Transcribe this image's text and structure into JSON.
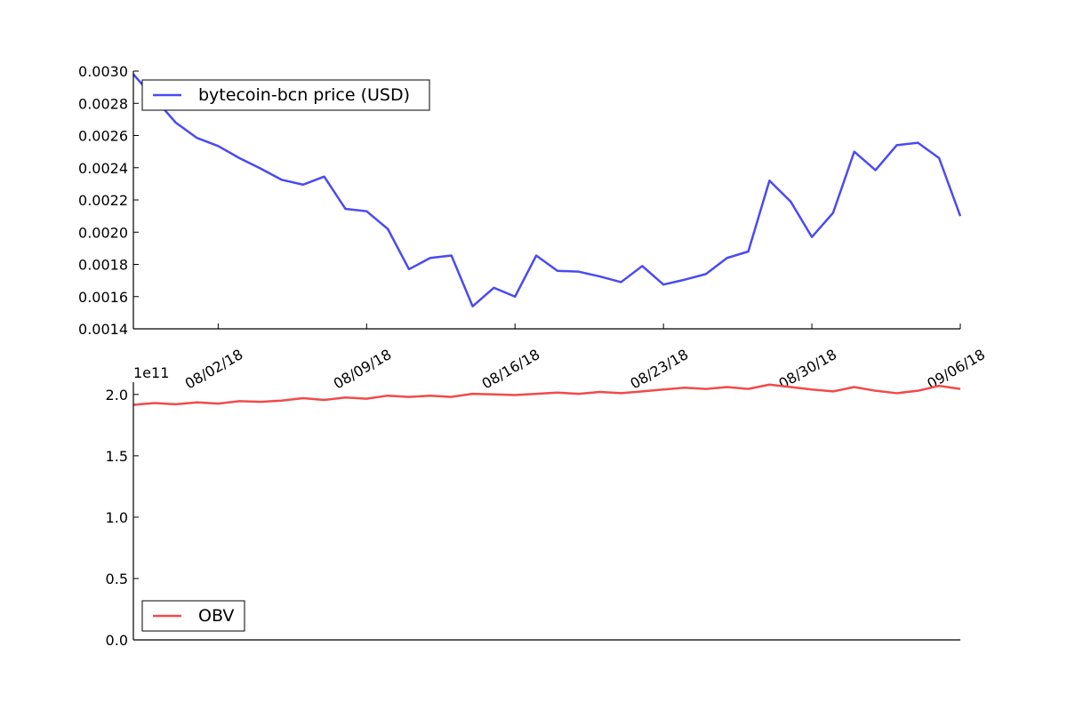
{
  "chart_data": [
    {
      "type": "line",
      "title": "",
      "xlabel": "",
      "ylabel": "",
      "x_tick_labels": [
        "08/02/18",
        "08/09/18",
        "08/16/18",
        "08/23/18",
        "08/30/18",
        "09/06/18"
      ],
      "x_tick_dates": [
        "2018-08-02",
        "2018-08-09",
        "2018-08-16",
        "2018-08-23",
        "2018-08-30",
        "2018-09-06"
      ],
      "xlim": [
        "2018-07-29",
        "2018-09-06"
      ],
      "ylim": [
        0.0014,
        0.003
      ],
      "y_ticks": [
        0.0014,
        0.0016,
        0.0018,
        0.002,
        0.0022,
        0.0024,
        0.0026,
        0.0028,
        0.003
      ],
      "y_tick_labels": [
        "0.0014",
        "0.0016",
        "0.0018",
        "0.0020",
        "0.0022",
        "0.0024",
        "0.0026",
        "0.0028",
        "0.0030"
      ],
      "grid": false,
      "legend_position": "upper-left",
      "series": [
        {
          "name": "bytecoin-bcn price (USD)",
          "color": "#4a4af2",
          "x": [
            "2018-07-29",
            "2018-07-30",
            "2018-07-31",
            "2018-08-01",
            "2018-08-02",
            "2018-08-03",
            "2018-08-04",
            "2018-08-05",
            "2018-08-06",
            "2018-08-07",
            "2018-08-08",
            "2018-08-09",
            "2018-08-10",
            "2018-08-11",
            "2018-08-12",
            "2018-08-13",
            "2018-08-14",
            "2018-08-15",
            "2018-08-16",
            "2018-08-17",
            "2018-08-18",
            "2018-08-19",
            "2018-08-20",
            "2018-08-21",
            "2018-08-22",
            "2018-08-23",
            "2018-08-24",
            "2018-08-25",
            "2018-08-26",
            "2018-08-27",
            "2018-08-28",
            "2018-08-29",
            "2018-08-30",
            "2018-08-31",
            "2018-09-01",
            "2018-09-02",
            "2018-09-03",
            "2018-09-04",
            "2018-09-05",
            "2018-09-06"
          ],
          "values": [
            0.00298,
            0.00283,
            0.00268,
            0.002585,
            0.002535,
            0.00246,
            0.002395,
            0.002325,
            0.002295,
            0.002345,
            0.002145,
            0.00213,
            0.00202,
            0.00177,
            0.00184,
            0.001855,
            0.00154,
            0.001655,
            0.0016,
            0.001855,
            0.00176,
            0.001755,
            0.001725,
            0.00169,
            0.00179,
            0.001675,
            0.001705,
            0.00174,
            0.00184,
            0.00188,
            0.00232,
            0.00219,
            0.00197,
            0.00212,
            0.0025,
            0.002385,
            0.00254,
            0.002555,
            0.00246,
            0.0021
          ]
        }
      ]
    },
    {
      "type": "line",
      "title": "",
      "xlabel": "",
      "ylabel": "",
      "offset_label": "1e11",
      "xlim": [
        "2018-07-29",
        "2018-09-06"
      ],
      "ylim": [
        0,
        2.1
      ],
      "y_ticks": [
        0,
        0.5,
        1.0,
        1.5,
        2.0
      ],
      "y_tick_labels": [
        "0.0",
        "0.5",
        "1.0",
        "1.5",
        "2.0"
      ],
      "grid": false,
      "legend_position": "lower-left",
      "series": [
        {
          "name": "OBV",
          "color": "#f24a4a",
          "x": [
            "2018-07-29",
            "2018-07-30",
            "2018-07-31",
            "2018-08-01",
            "2018-08-02",
            "2018-08-03",
            "2018-08-04",
            "2018-08-05",
            "2018-08-06",
            "2018-08-07",
            "2018-08-08",
            "2018-08-09",
            "2018-08-10",
            "2018-08-11",
            "2018-08-12",
            "2018-08-13",
            "2018-08-14",
            "2018-08-15",
            "2018-08-16",
            "2018-08-17",
            "2018-08-18",
            "2018-08-19",
            "2018-08-20",
            "2018-08-21",
            "2018-08-22",
            "2018-08-23",
            "2018-08-24",
            "2018-08-25",
            "2018-08-26",
            "2018-08-27",
            "2018-08-28",
            "2018-08-29",
            "2018-08-30",
            "2018-08-31",
            "2018-09-01",
            "2018-09-02",
            "2018-09-03",
            "2018-09-04",
            "2018-09-05",
            "2018-09-06"
          ],
          "values": [
            1.915,
            1.93,
            1.92,
            1.935,
            1.925,
            1.945,
            1.94,
            1.95,
            1.97,
            1.955,
            1.975,
            1.965,
            1.99,
            1.98,
            1.99,
            1.98,
            2.005,
            2.0,
            1.995,
            2.005,
            2.015,
            2.005,
            2.02,
            2.01,
            2.025,
            2.04,
            2.055,
            2.045,
            2.06,
            2.045,
            2.08,
            2.06,
            2.04,
            2.025,
            2.06,
            2.03,
            2.01,
            2.03,
            2.07,
            2.045
          ]
        }
      ]
    }
  ]
}
